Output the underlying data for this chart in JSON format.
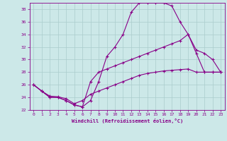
{
  "xlabel": "Windchill (Refroidissement éolien,°C)",
  "background_color": "#cce8e8",
  "grid_color": "#aacccc",
  "line_color": "#880088",
  "xlim_min": -0.5,
  "xlim_max": 23.5,
  "ylim_min": 22,
  "ylim_max": 39,
  "xticks": [
    0,
    1,
    2,
    3,
    4,
    5,
    6,
    7,
    8,
    9,
    10,
    11,
    12,
    13,
    14,
    15,
    16,
    17,
    18,
    19,
    20,
    21,
    22,
    23
  ],
  "yticks": [
    22,
    24,
    26,
    28,
    30,
    32,
    34,
    36,
    38
  ],
  "line1_x": [
    0,
    1,
    2,
    3,
    4,
    5,
    6,
    7,
    8,
    9,
    10,
    11,
    12,
    13,
    14,
    15,
    16,
    17,
    18,
    19,
    20,
    21,
    22,
    23
  ],
  "line1_y": [
    26.0,
    25.0,
    24.0,
    24.0,
    23.5,
    22.8,
    22.5,
    23.5,
    26.5,
    30.5,
    32.0,
    34.0,
    37.5,
    39.0,
    39.0,
    39.0,
    39.0,
    38.5,
    36.0,
    34.0,
    31.5,
    31.0,
    30.0,
    28.0
  ],
  "line2_x": [
    0,
    1,
    2,
    3,
    4,
    5,
    6,
    7,
    8,
    9,
    10,
    11,
    12,
    13,
    14,
    15,
    16,
    17,
    18,
    19,
    20,
    21,
    22,
    23
  ],
  "line2_y": [
    26.0,
    25.0,
    24.0,
    24.0,
    23.5,
    22.8,
    22.5,
    26.5,
    28.0,
    28.5,
    29.0,
    29.5,
    30.0,
    30.5,
    31.0,
    31.5,
    32.0,
    32.5,
    33.0,
    34.0,
    31.0,
    28.0,
    28.0,
    28.0
  ],
  "line3_x": [
    0,
    1,
    2,
    3,
    4,
    5,
    6,
    7,
    8,
    9,
    10,
    11,
    12,
    13,
    14,
    15,
    16,
    17,
    18,
    19,
    20,
    21,
    22,
    23
  ],
  "line3_y": [
    26.0,
    25.0,
    24.2,
    24.1,
    23.8,
    23.0,
    23.5,
    24.5,
    25.0,
    25.5,
    26.0,
    26.5,
    27.0,
    27.5,
    27.8,
    28.0,
    28.2,
    28.3,
    28.4,
    28.5,
    28.0,
    28.0,
    28.0,
    28.0
  ]
}
